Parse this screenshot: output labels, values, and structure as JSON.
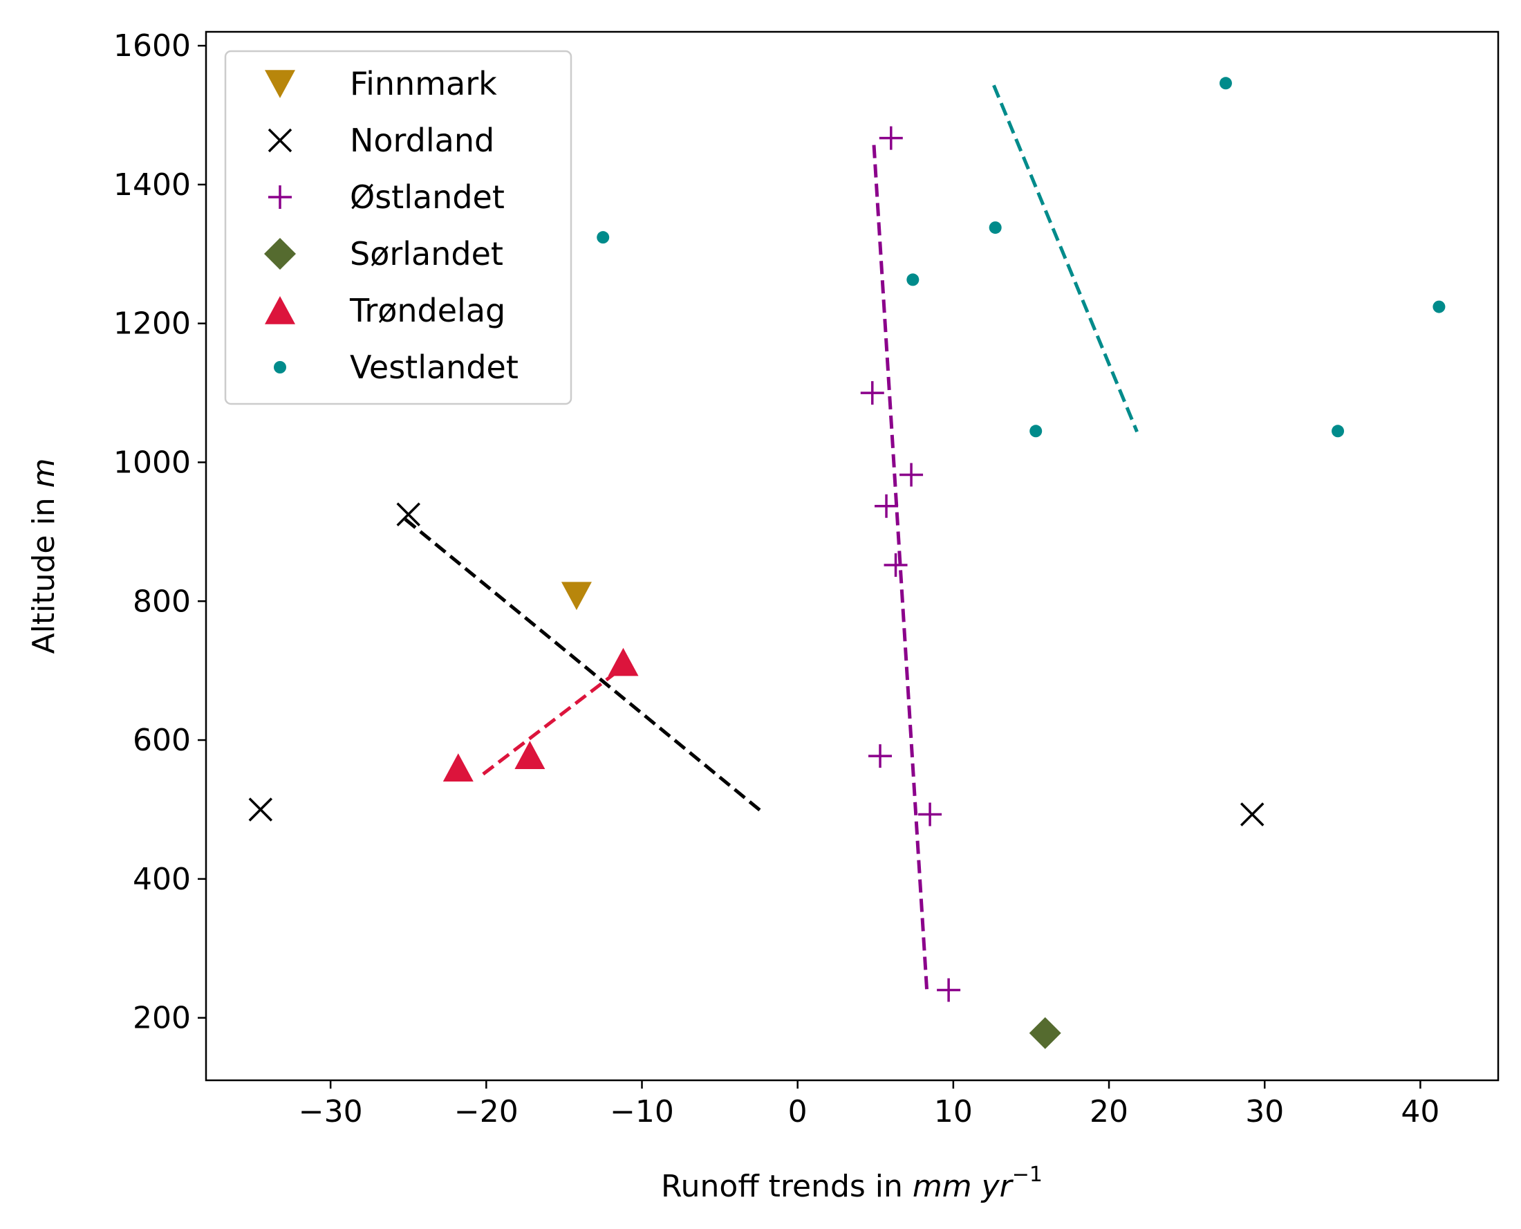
{
  "chart_data": {
    "type": "scatter",
    "xlabel": {
      "prefix": "Runoff trends in ",
      "unit": "mm yr",
      "sup": "−1"
    },
    "ylabel": {
      "prefix": "Altitude in ",
      "unit": "m"
    },
    "xlim": [
      -38,
      45
    ],
    "ylim": [
      110,
      1620
    ],
    "xticks": [
      -30,
      -20,
      -10,
      0,
      10,
      20,
      30,
      40
    ],
    "xtick_labels": [
      "−30",
      "−20",
      "−10",
      "0",
      "10",
      "20",
      "30",
      "40"
    ],
    "yticks": [
      200,
      400,
      600,
      800,
      1000,
      1200,
      1400,
      1600
    ],
    "ytick_labels": [
      "200",
      "400",
      "600",
      "800",
      "1000",
      "1200",
      "1400",
      "1600"
    ],
    "grid": false,
    "legend_position": "top-left",
    "series": [
      {
        "name": "Finnmark",
        "marker": "triangle-down-icon",
        "color": "#b8860b",
        "points": [
          [
            -14.2,
            808
          ]
        ]
      },
      {
        "name": "Nordland",
        "marker": "x-icon",
        "color": "#000000",
        "points": [
          [
            -25,
            925
          ],
          [
            -34.5,
            500
          ],
          [
            29.2,
            493
          ]
        ],
        "trend": [
          [
            -25.2,
            918
          ],
          [
            -2.2,
            495
          ]
        ]
      },
      {
        "name": "Østlandet",
        "marker": "plus-icon",
        "color": "#8b008b",
        "points": [
          [
            6,
            1467
          ],
          [
            4.8,
            1100
          ],
          [
            7.3,
            982
          ],
          [
            5.7,
            937
          ],
          [
            6.3,
            852
          ],
          [
            5.3,
            577
          ],
          [
            8.5,
            493
          ],
          [
            9.7,
            240
          ]
        ],
        "trend": [
          [
            4.9,
            1457
          ],
          [
            8.3,
            240
          ]
        ]
      },
      {
        "name": "Sørlandet",
        "marker": "diamond-icon",
        "color": "#556b2f",
        "points": [
          [
            15.9,
            178
          ]
        ]
      },
      {
        "name": "Trøndelag",
        "marker": "triangle-up-icon",
        "color": "#dc143c",
        "points": [
          [
            -11.2,
            712
          ],
          [
            -17.2,
            578
          ],
          [
            -21.8,
            560
          ]
        ],
        "trend": [
          [
            -20.2,
            551
          ],
          [
            -11.8,
            695
          ]
        ]
      },
      {
        "name": "Vestlandet",
        "marker": "dot-icon",
        "color": "#008b8b",
        "points": [
          [
            27.5,
            1546
          ],
          [
            -12.5,
            1324
          ],
          [
            12.7,
            1338
          ],
          [
            7.4,
            1263
          ],
          [
            41.2,
            1224
          ],
          [
            15.3,
            1045
          ],
          [
            34.7,
            1045
          ]
        ],
        "trend": [
          [
            12.6,
            1543
          ],
          [
            21.8,
            1044
          ]
        ]
      }
    ]
  }
}
